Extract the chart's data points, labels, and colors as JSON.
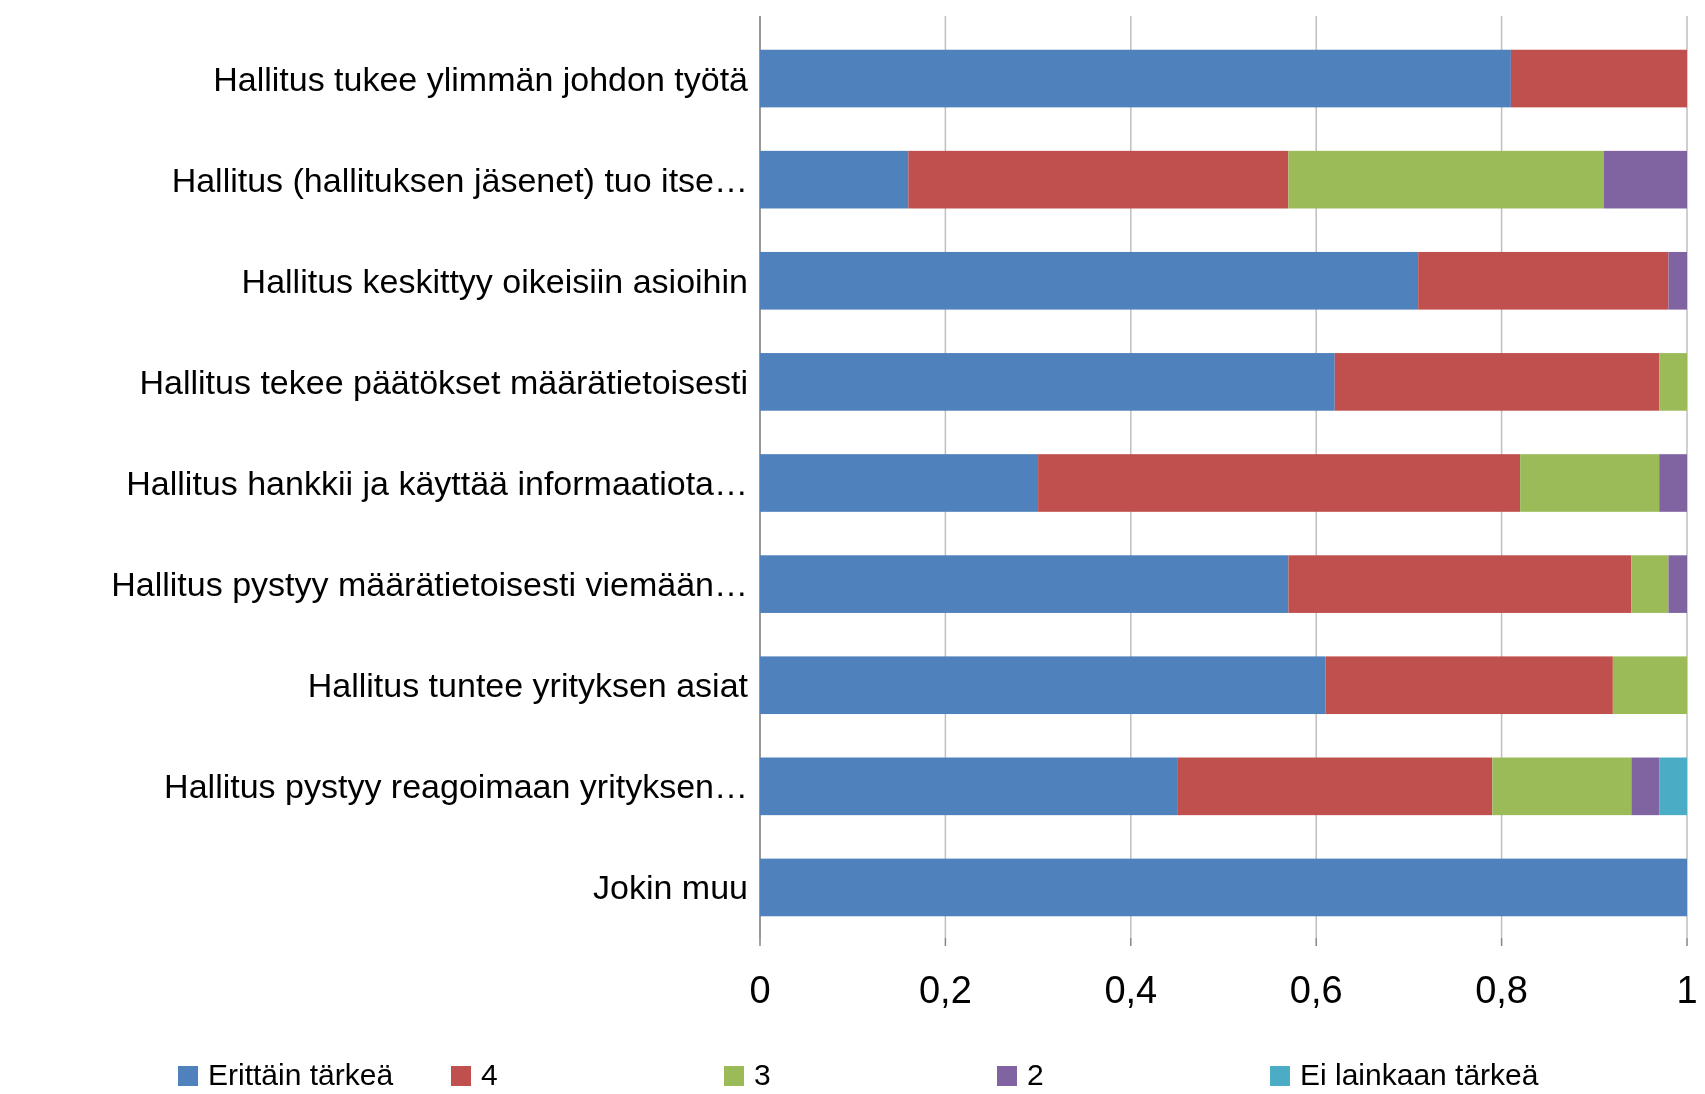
{
  "chart_data": {
    "type": "bar",
    "orientation": "horizontal",
    "stacked": true,
    "categories": [
      "Hallitus tukee ylimmän johdon työtä",
      "Hallitus (hallituksen jäsenet) tuo itse…",
      "Hallitus keskittyy oikeisiin asioihin",
      "Hallitus tekee päätökset määrätietoisesti",
      "Hallitus hankkii ja käyttää informaatiota…",
      "Hallitus pystyy määrätietoisesti viemään…",
      "Hallitus tuntee yrityksen asiat",
      "Hallitus pystyy reagoimaan yrityksen…",
      "Jokin muu"
    ],
    "series": [
      {
        "name": "Erittäin tärkeä",
        "color": "#4f81bd",
        "values": [
          0.81,
          0.16,
          0.71,
          0.62,
          0.3,
          0.57,
          0.61,
          0.45,
          1
        ]
      },
      {
        "name": "4",
        "color": "#c0504d",
        "values": [
          0.19,
          0.41,
          0.27,
          0.35,
          0.52,
          0.37,
          0.31,
          0.34,
          0
        ]
      },
      {
        "name": "3",
        "color": "#9bbb59",
        "values": [
          0,
          0.34,
          0,
          0.03,
          0.15,
          0.04,
          0.08,
          0.15,
          0
        ]
      },
      {
        "name": "2",
        "color": "#8064a2",
        "values": [
          0,
          0.09,
          0.02,
          0,
          0.03,
          0.02,
          0,
          0.03,
          0
        ]
      },
      {
        "name": "Ei lainkaan tärkeä",
        "color": "#4bacc6",
        "values": [
          0,
          0,
          0,
          0,
          0,
          0,
          0,
          0.03,
          0
        ]
      }
    ],
    "xlim": [
      0,
      1
    ],
    "xticks": [
      0,
      {
        "value": 0.2,
        "label": "0,2"
      },
      {
        "value": 0.4,
        "label": "0,4"
      },
      {
        "value": 0.6,
        "label": "0,6"
      },
      {
        "value": 0.8,
        "label": "0,8"
      },
      1
    ],
    "grid": "x",
    "legend": "bottom"
  }
}
